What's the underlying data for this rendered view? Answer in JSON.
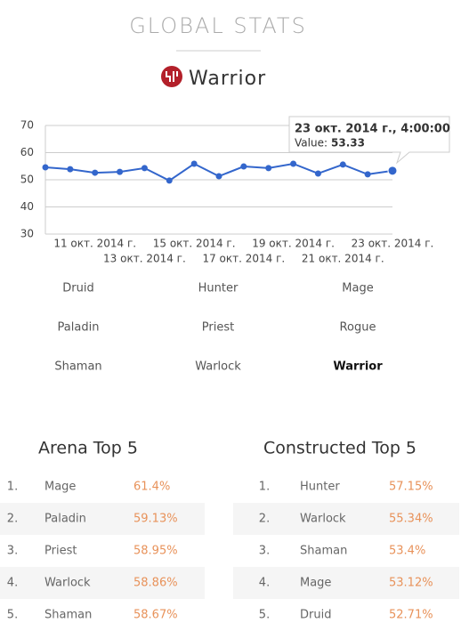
{
  "header": {
    "title": "GLOBAL STATS",
    "hero": "Warrior"
  },
  "chart_data": {
    "type": "line",
    "categories": [
      null,
      null,
      "11 окт. 2014 г.",
      null,
      "13 окт. 2014 г.",
      null,
      "15 окт. 2014 г.",
      null,
      "17 окт. 2014 г.",
      null,
      "19 окт. 2014 г.",
      null,
      "21 окт. 2014 г.",
      null,
      "23 окт. 2014 г."
    ],
    "series": [
      {
        "name": "Value",
        "color": "#3366cc",
        "values": [
          54.6,
          53.9,
          52.6,
          52.9,
          54.3,
          49.7,
          55.9,
          51.3,
          54.9,
          54.3,
          55.9,
          52.3,
          55.6,
          52.0,
          53.33
        ]
      }
    ],
    "ylim": [
      30,
      70
    ],
    "yticks": [
      30,
      40,
      50,
      60,
      70
    ],
    "grid": true,
    "tooltip": {
      "title": "23 окт. 2014 г., 4:00:00",
      "label": "Value:"
    }
  },
  "classes": [
    "Druid",
    "Hunter",
    "Mage",
    "Paladin",
    "Priest",
    "Rogue",
    "Shaman",
    "Warlock",
    "Warrior"
  ],
  "selected_class": "Warrior",
  "arena": {
    "title": "Arena Top 5",
    "rows": [
      [
        "1.",
        "Mage",
        "61.4%"
      ],
      [
        "2.",
        "Paladin",
        "59.13%"
      ],
      [
        "3.",
        "Priest",
        "58.95%"
      ],
      [
        "4.",
        "Warlock",
        "58.86%"
      ],
      [
        "5.",
        "Shaman",
        "58.67%"
      ]
    ]
  },
  "constructed": {
    "title": "Constructed Top 5",
    "rows": [
      [
        "1.",
        "Hunter",
        "57.15%"
      ],
      [
        "2.",
        "Warlock",
        "55.34%"
      ],
      [
        "3.",
        "Shaman",
        "53.4%"
      ],
      [
        "4.",
        "Mage",
        "53.12%"
      ],
      [
        "5.",
        "Druid",
        "52.71%"
      ]
    ]
  }
}
